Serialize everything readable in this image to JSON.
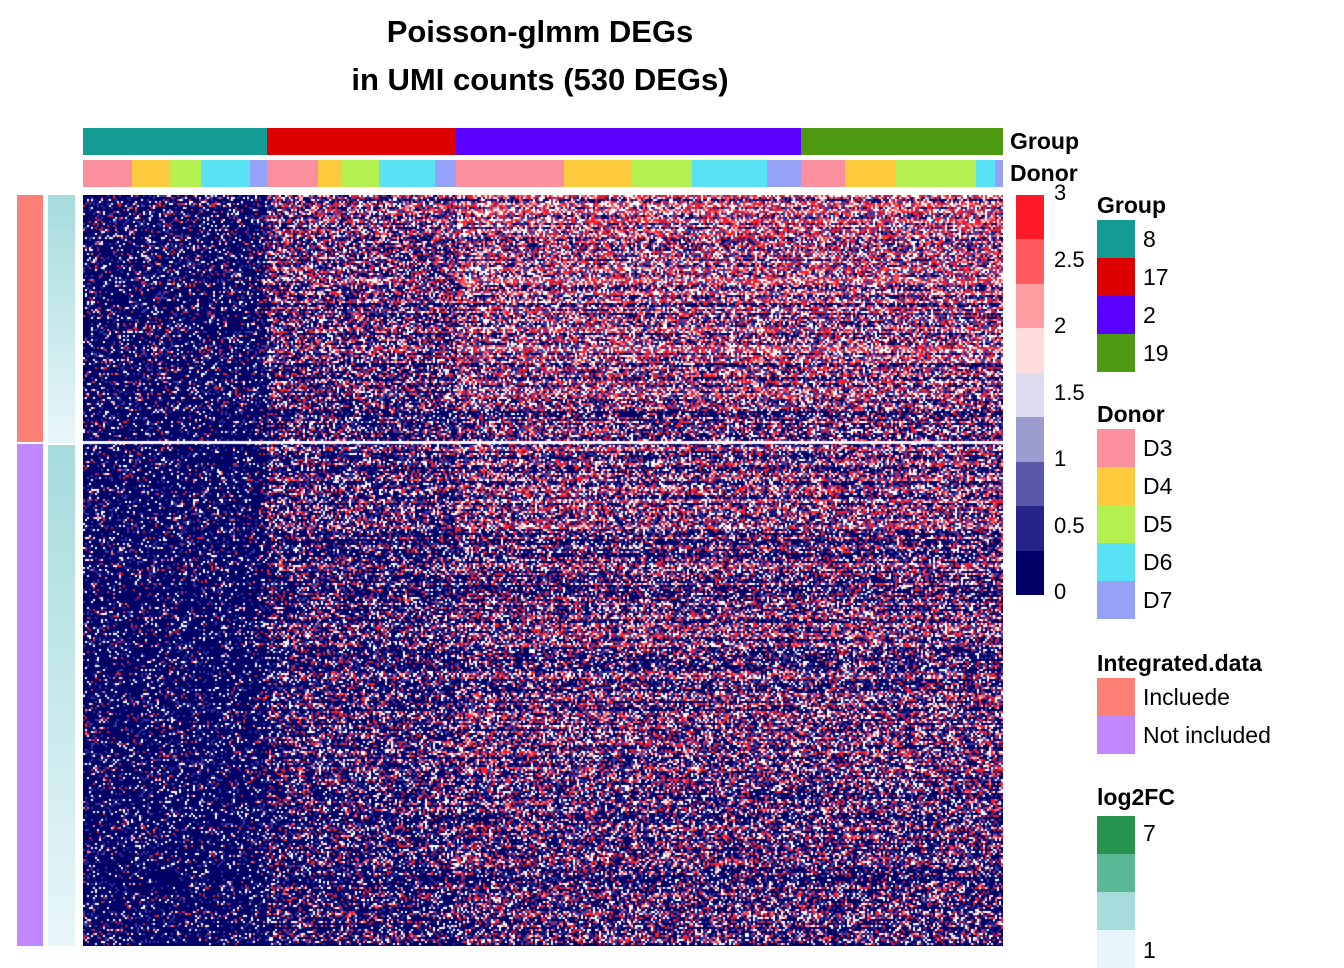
{
  "chart_data": {
    "type": "heatmap",
    "title": [
      "Poisson-glmm DEGs",
      "in UMI counts (530 DEGs)"
    ],
    "n_genes": 530,
    "value_range": [
      0,
      3
    ],
    "color_scale": {
      "ticks": [
        "3",
        "2.5",
        "2",
        "1.5",
        "1",
        "0.5",
        "0"
      ],
      "colors": [
        "#ff1a28",
        "#ff5a60",
        "#ff9ea2",
        "#ffdcdc",
        "#dcdcee",
        "#9d9cd0",
        "#5a58a8",
        "#262488",
        "#000066"
      ]
    },
    "column_annotations": [
      {
        "name": "Group",
        "levels": [
          {
            "label": "8",
            "color": "#139c94",
            "fraction": 0.2
          },
          {
            "label": "17",
            "color": "#dc0000",
            "fraction": 0.205
          },
          {
            "label": "2",
            "color": "#5a00ff",
            "fraction": 0.375
          },
          {
            "label": "19",
            "color": "#4d9a12",
            "fraction": 0.22
          }
        ]
      },
      {
        "name": "Donor",
        "levels": [
          {
            "label": "D3",
            "color": "#fa909e"
          },
          {
            "label": "D4",
            "color": "#fcca3c"
          },
          {
            "label": "D5",
            "color": "#b4f050"
          },
          {
            "label": "D6",
            "color": "#58e2f4"
          },
          {
            "label": "D7",
            "color": "#96a2f8"
          }
        ],
        "segments": [
          {
            "donor": "D3",
            "fraction": 0.053
          },
          {
            "donor": "D4",
            "fraction": 0.042
          },
          {
            "donor": "D5",
            "fraction": 0.033
          },
          {
            "donor": "D6",
            "fraction": 0.054
          },
          {
            "donor": "D7",
            "fraction": 0.018
          },
          {
            "donor": "D3",
            "fraction": 0.056
          },
          {
            "donor": "D4",
            "fraction": 0.025
          },
          {
            "donor": "D5",
            "fraction": 0.041
          },
          {
            "donor": "D6",
            "fraction": 0.061
          },
          {
            "donor": "D7",
            "fraction": 0.022
          },
          {
            "donor": "D3",
            "fraction": 0.118
          },
          {
            "donor": "D4",
            "fraction": 0.074
          },
          {
            "donor": "D5",
            "fraction": 0.065
          },
          {
            "donor": "D6",
            "fraction": 0.082
          },
          {
            "donor": "D7",
            "fraction": 0.036
          },
          {
            "donor": "D3",
            "fraction": 0.048
          },
          {
            "donor": "D4",
            "fraction": 0.055
          },
          {
            "donor": "D5",
            "fraction": 0.088
          },
          {
            "donor": "D6",
            "fraction": 0.02
          },
          {
            "donor": "D7",
            "fraction": 0.009
          }
        ]
      }
    ],
    "row_annotations": [
      {
        "name": "Integrated.data",
        "levels": [
          {
            "label": "Incluede",
            "color": "#fc8076",
            "fraction": 0.33
          },
          {
            "label": "Not included",
            "color": "#c088fc",
            "fraction": 0.67
          }
        ]
      },
      {
        "name": "log2FC",
        "range": [
          1,
          7
        ],
        "ticks": [
          "7",
          "1"
        ],
        "colors": [
          "#26944e",
          "#5ab897",
          "#a6dcdc",
          "#e8f6fb"
        ]
      }
    ]
  },
  "labels": {
    "group_strip": "Group",
    "donor_strip": "Donor",
    "legend_group": "Group",
    "legend_donor": "Donor",
    "legend_integrated": "Integrated.data",
    "legend_log2fc": "log2FC"
  }
}
